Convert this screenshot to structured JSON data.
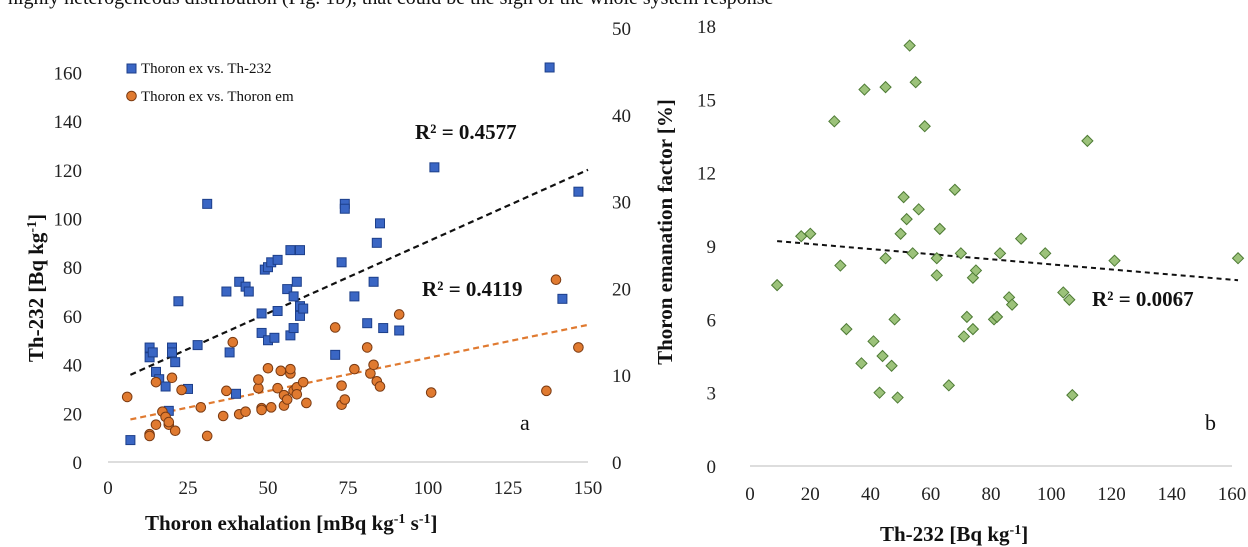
{
  "caption": "highly heterogeneous distribution (Fig. 1b), that could be the sign of the whole system response",
  "chart_data": [
    {
      "type": "scatter",
      "panel_label": "a",
      "xlabel": "Thoron exhalation [mBq kg-1 s-1]",
      "ylabel": "Th-232 [Bq kg-1]",
      "y2label": "Thoron emanation factor [%]",
      "xlim": [
        0,
        150
      ],
      "ylim": [
        0,
        170
      ],
      "y2lim": [
        0,
        50
      ],
      "xticks": [
        0,
        25,
        50,
        75,
        100,
        125,
        150
      ],
      "yticks": [
        0,
        20,
        40,
        60,
        80,
        100,
        120,
        140,
        160
      ],
      "y2ticks": [
        0,
        10,
        20,
        30,
        40,
        50
      ],
      "legend_position": "top-left",
      "series": [
        {
          "name": "Thoron ex vs. Th-232",
          "axis": "left",
          "marker": "square",
          "color": "#3a66c4",
          "x": [
            7,
            13,
            13,
            14,
            15,
            16,
            18,
            19,
            20,
            20,
            21,
            22,
            25,
            28,
            31,
            37,
            38,
            40,
            41,
            43,
            44,
            48,
            48,
            49,
            50,
            50,
            51,
            52,
            53,
            53,
            56,
            57,
            57,
            58,
            58,
            59,
            60,
            60,
            60,
            61,
            71,
            73,
            74,
            74,
            77,
            81,
            83,
            84,
            85,
            86,
            91,
            102,
            138,
            142,
            147
          ],
          "y": [
            9,
            43,
            47,
            45,
            37,
            34,
            31,
            21,
            47,
            45,
            41,
            66,
            30,
            48,
            106,
            70,
            45,
            28,
            74,
            72,
            70,
            53,
            61,
            79,
            50,
            80,
            82,
            51,
            83,
            62,
            71,
            52,
            87,
            55,
            68,
            74,
            87,
            64,
            60,
            63,
            44,
            82,
            106,
            104,
            68,
            57,
            74,
            90,
            98,
            55,
            54,
            121,
            162,
            67,
            111
          ]
        },
        {
          "name": "Thoron ex vs. Thoron em",
          "axis": "right",
          "marker": "circle",
          "color": "#e07a30",
          "x": [
            6,
            13,
            13,
            15,
            15,
            17,
            18,
            19,
            19,
            20,
            21,
            23,
            29,
            31,
            36,
            37,
            39,
            41,
            43,
            47,
            47,
            48,
            48,
            50,
            51,
            53,
            54,
            55,
            55,
            56,
            57,
            57,
            58,
            59,
            59,
            61,
            62,
            71,
            73,
            73,
            74,
            77,
            81,
            82,
            83,
            84,
            85,
            91,
            101,
            137,
            140,
            147
          ],
          "y": [
            7.5,
            3.2,
            3,
            4.3,
            9.2,
            5.8,
            5.2,
            4.3,
            4.6,
            9.7,
            3.6,
            8.3,
            6.3,
            3,
            5.3,
            8.2,
            13.8,
            5.5,
            5.8,
            8.5,
            9.5,
            6.2,
            6,
            10.8,
            6.3,
            8.5,
            10.5,
            6.5,
            7.7,
            7.2,
            10.2,
            10.7,
            8.2,
            8.6,
            7.8,
            9.2,
            6.8,
            15.5,
            8.8,
            6.6,
            7.2,
            10.7,
            13.2,
            10.2,
            11.2,
            9.3,
            8.7,
            17,
            8,
            8.2,
            21,
            13.2
          ]
        }
      ],
      "trendlines": [
        {
          "series": "Thoron ex vs. Th-232",
          "axis": "left",
          "x": [
            7,
            150
          ],
          "y": [
            35.8,
            120
          ],
          "color": "#111111",
          "r2_label": "R² = 0.4577"
        },
        {
          "series": "Thoron ex vs. Thoron em",
          "axis": "right",
          "x": [
            7,
            150
          ],
          "y": [
            4.9,
            15.8
          ],
          "color": "#e07a30",
          "r2_label": "R² = 0.4119"
        }
      ]
    },
    {
      "type": "scatter",
      "panel_label": "b",
      "xlabel": "Th-232 [Bq kg-1]",
      "ylabel": "Thoron emanation factor [%]",
      "xlim": [
        0,
        160
      ],
      "ylim": [
        0,
        18
      ],
      "xticks": [
        0,
        20,
        40,
        60,
        80,
        100,
        120,
        140,
        160
      ],
      "yticks": [
        0,
        3,
        6,
        9,
        12,
        15,
        18
      ],
      "series": [
        {
          "name": "",
          "marker": "diamond",
          "color": "#9cc27a",
          "x": [
            9,
            17,
            20,
            28,
            30,
            32,
            37,
            38,
            41,
            43,
            44,
            45,
            45,
            47,
            48,
            49,
            50,
            51,
            52,
            53,
            54,
            55,
            56,
            58,
            62,
            62,
            63,
            66,
            68,
            70,
            71,
            72,
            74,
            74,
            75,
            81,
            82,
            83,
            86,
            87,
            90,
            98,
            104,
            106,
            107,
            112,
            121,
            162
          ],
          "y": [
            7.4,
            9.4,
            9.5,
            14.1,
            8.2,
            5.6,
            4.2,
            15.4,
            5.1,
            3,
            4.5,
            8.5,
            15.5,
            4.1,
            6,
            2.8,
            9.5,
            11,
            10.1,
            17.2,
            8.7,
            15.7,
            10.5,
            13.9,
            8.5,
            7.8,
            9.7,
            3.3,
            11.3,
            8.7,
            5.3,
            6.1,
            7.7,
            5.6,
            8,
            6,
            6.1,
            8.7,
            6.9,
            6.6,
            9.3,
            8.7,
            7.1,
            6.8,
            2.9,
            13.3,
            8.4,
            8.5
          ]
        }
      ],
      "trendlines": [
        {
          "x": [
            9,
            162
          ],
          "y": [
            9.2,
            7.6
          ],
          "color": "#111111",
          "r2_label": "R² = 0.0067"
        }
      ]
    }
  ]
}
